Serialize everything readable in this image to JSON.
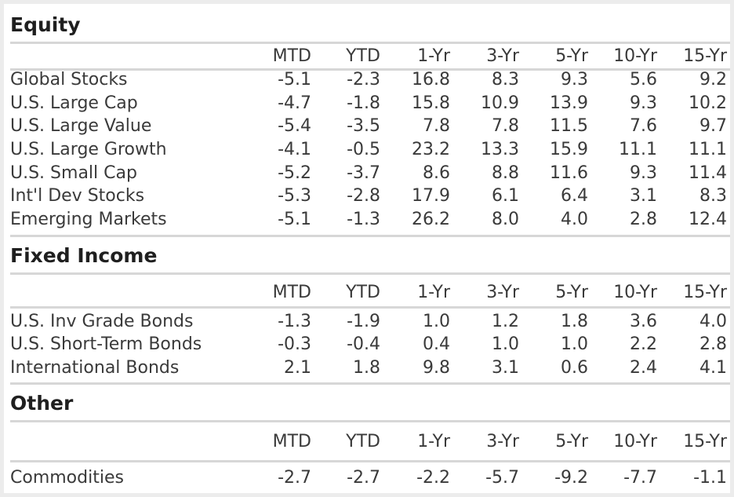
{
  "columns": [
    "MTD",
    "YTD",
    "1-Yr",
    "3-Yr",
    "5-Yr",
    "10-Yr",
    "15-Yr"
  ],
  "sections": [
    {
      "title": "Equity",
      "rows": [
        {
          "name": "Global Stocks",
          "values": [
            "-5.1",
            "-2.3",
            "16.8",
            "8.3",
            "9.3",
            "5.6",
            "9.2"
          ]
        },
        {
          "name": "U.S. Large Cap",
          "values": [
            "-4.7",
            "-1.8",
            "15.8",
            "10.9",
            "13.9",
            "9.3",
            "10.2"
          ]
        },
        {
          "name": "U.S. Large Value",
          "values": [
            "-5.4",
            "-3.5",
            "7.8",
            "7.8",
            "11.5",
            "7.6",
            "9.7"
          ]
        },
        {
          "name": "U.S. Large Growth",
          "values": [
            "-4.1",
            "-0.5",
            "23.2",
            "13.3",
            "15.9",
            "11.1",
            "11.1"
          ]
        },
        {
          "name": "U.S. Small Cap",
          "values": [
            "-5.2",
            "-3.7",
            "8.6",
            "8.8",
            "11.6",
            "9.3",
            "11.4"
          ]
        },
        {
          "name": "Int'l Dev Stocks",
          "values": [
            "-5.3",
            "-2.8",
            "17.9",
            "6.1",
            "6.4",
            "3.1",
            "8.3"
          ]
        },
        {
          "name": "Emerging Markets",
          "values": [
            "-5.1",
            "-1.3",
            "26.2",
            "8.0",
            "4.0",
            "2.8",
            "12.4"
          ]
        }
      ]
    },
    {
      "title": "Fixed Income",
      "rows": [
        {
          "name": "U.S. Inv Grade Bonds",
          "values": [
            "-1.3",
            "-1.9",
            "1.0",
            "1.2",
            "1.8",
            "3.6",
            "4.0"
          ]
        },
        {
          "name": "U.S. Short-Term Bonds",
          "values": [
            "-0.3",
            "-0.4",
            "0.4",
            "1.0",
            "1.0",
            "2.2",
            "2.8"
          ]
        },
        {
          "name": "International Bonds",
          "values": [
            "2.1",
            "1.8",
            "9.8",
            "3.1",
            "0.6",
            "2.4",
            "4.1"
          ]
        }
      ]
    },
    {
      "title": "Other",
      "rows": [
        {
          "name": "Commodities",
          "values": [
            "-2.7",
            "-2.7",
            "-2.2",
            "-5.7",
            "-9.2",
            "-7.7",
            "-1.1"
          ]
        }
      ]
    }
  ]
}
